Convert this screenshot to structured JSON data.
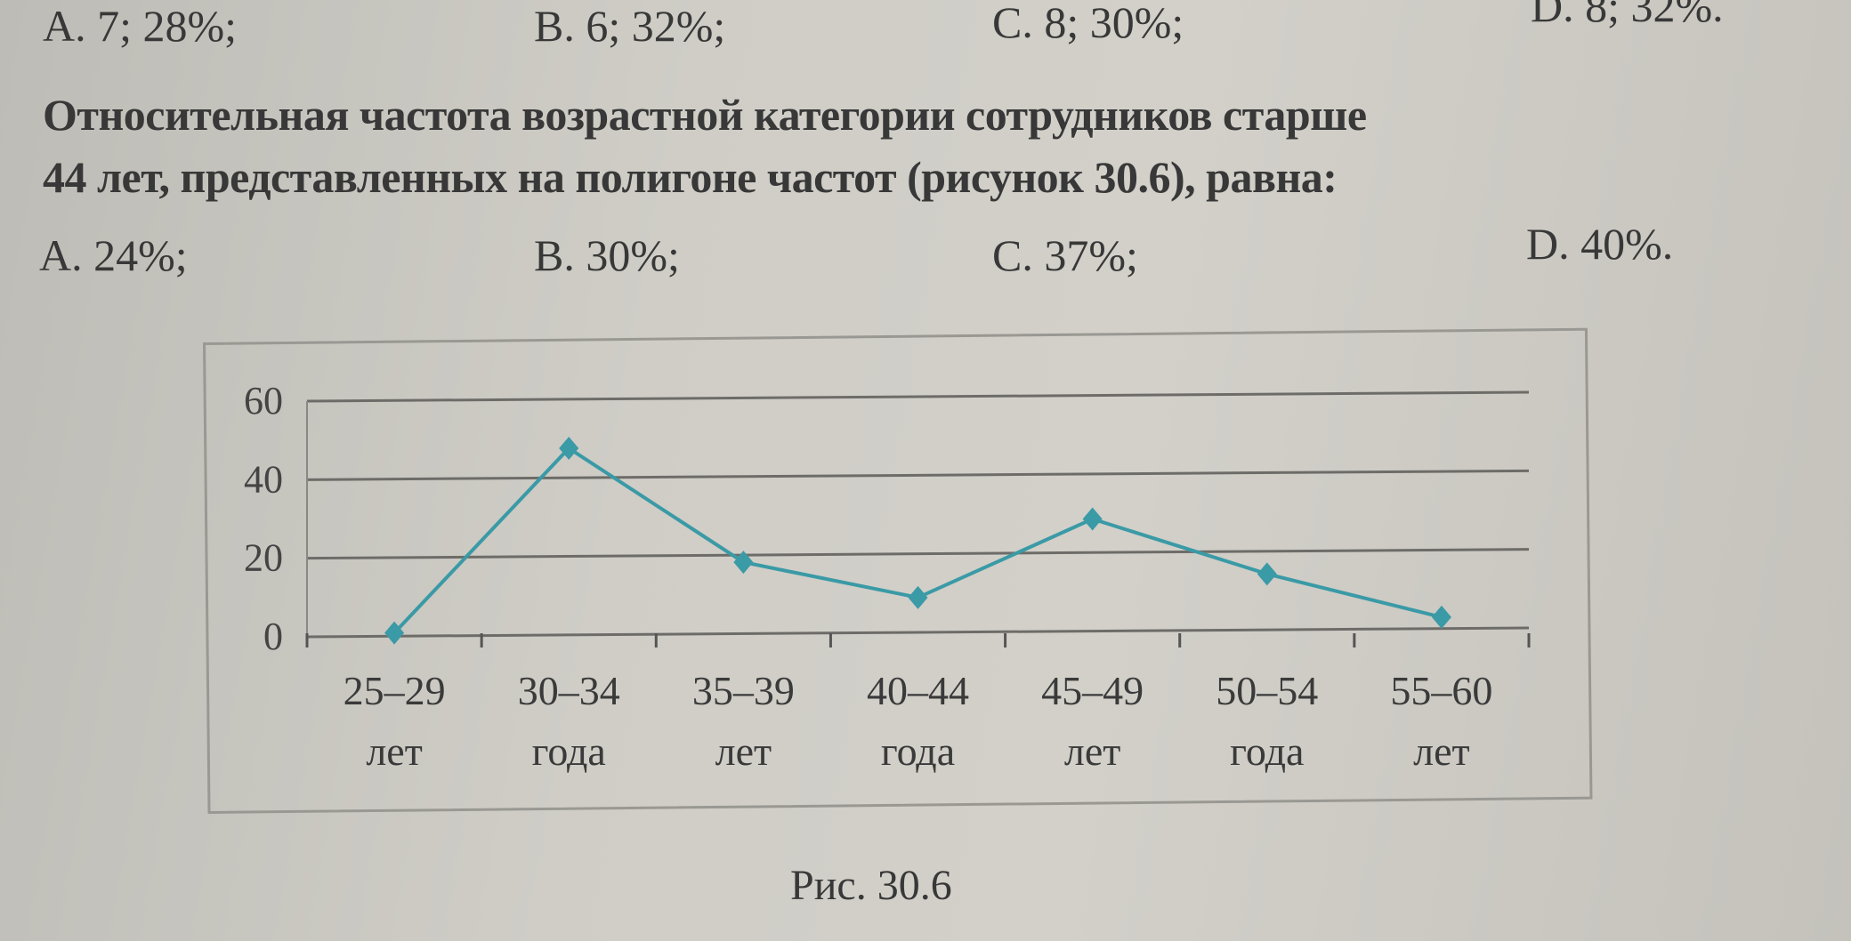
{
  "prev_options": [
    "A. 7; 28%;",
    "B. 6; 32%;",
    "C. 8; 30%;",
    "D. 8; 32%."
  ],
  "question": {
    "line1": "Относительная частота возрастной категории сотрудников старше",
    "line2": "44 лет, представленных на полигоне частот (рисунок 30.6), равна:"
  },
  "options": [
    "A. 24%;",
    "B. 30%;",
    "C. 37%;",
    "D. 40%."
  ],
  "caption": "Рис. 30.6",
  "chart_data": {
    "type": "line",
    "categories": [
      [
        "25–29",
        "лет"
      ],
      [
        "30–34",
        "года"
      ],
      [
        "35–39",
        "лет"
      ],
      [
        "40–44",
        "года"
      ],
      [
        "45–49",
        "лет"
      ],
      [
        "50–54",
        "года"
      ],
      [
        "55–60",
        "лет"
      ]
    ],
    "values": [
      1,
      48,
      19,
      10,
      30,
      16,
      5
    ],
    "ylim": [
      0,
      60
    ],
    "yticks": [
      0,
      20,
      40,
      60
    ],
    "grid": true,
    "marker": "diamond",
    "color": "#3a9aa6",
    "title": "",
    "xlabel": "",
    "ylabel": ""
  }
}
